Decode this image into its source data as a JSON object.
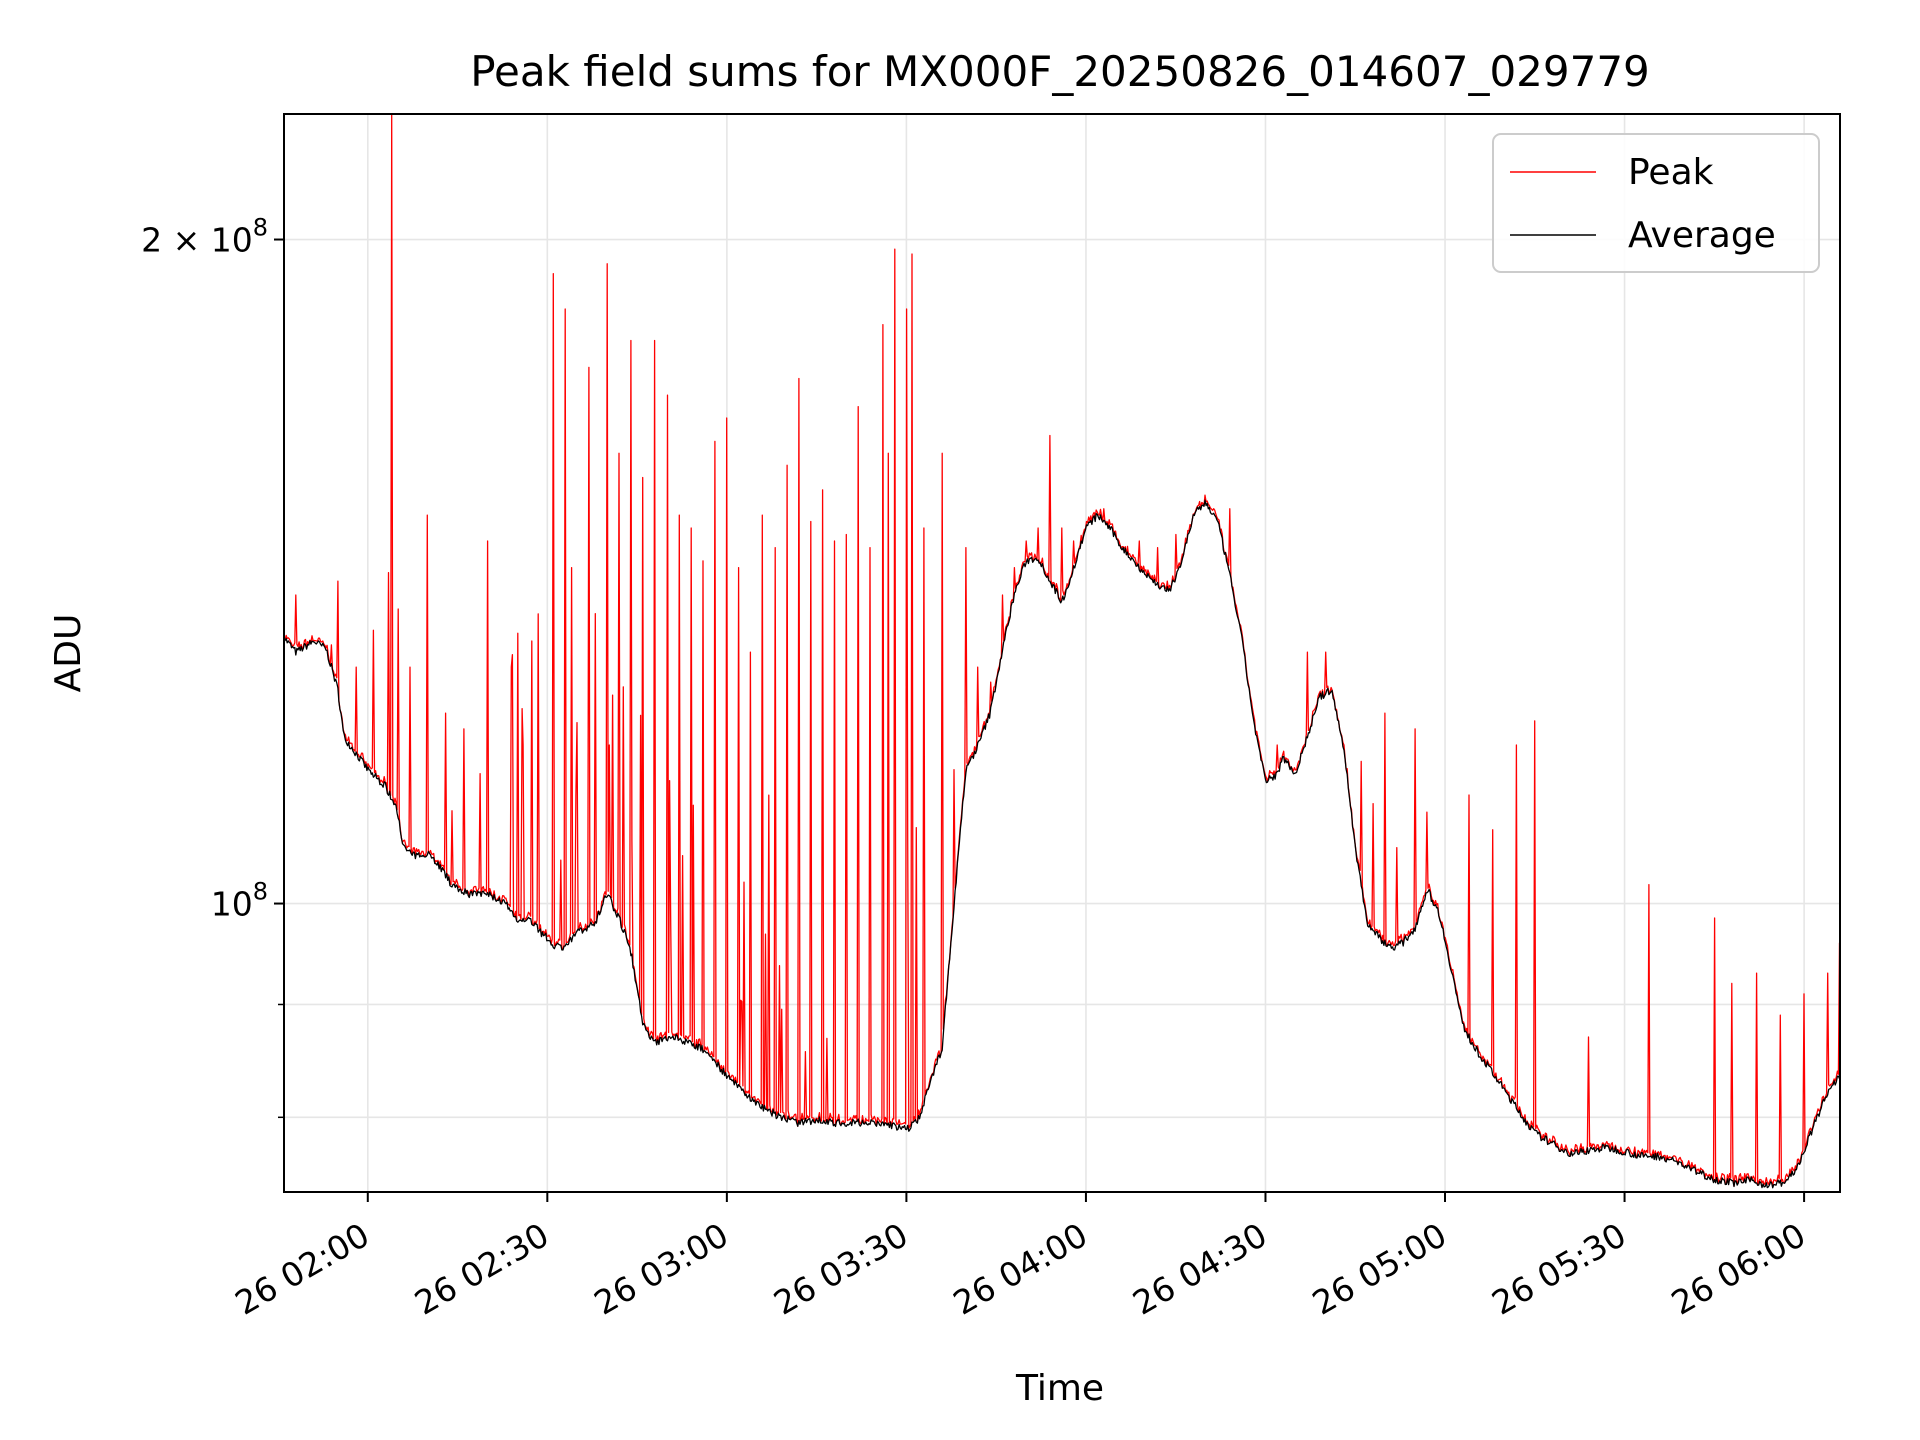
{
  "chart_data": {
    "type": "line",
    "title": "Peak field sums for MX000F_20250826_014607_029779",
    "xlabel": "Time",
    "ylabel": "ADU",
    "y_scale": "log",
    "xlim": [
      "26 01:46",
      "26 06:06"
    ],
    "ylim": [
      74000000,
      228000000
    ],
    "grid": true,
    "legend": {
      "placement": "upper right",
      "entries": [
        {
          "name": "Peak",
          "color": "#ff0000"
        },
        {
          "name": "Average",
          "color": "#000000"
        }
      ]
    },
    "x_ticks": [
      {
        "value": "26 02:00",
        "label": "26 02:00"
      },
      {
        "value": "26 02:30",
        "label": "26 02:30"
      },
      {
        "value": "26 03:00",
        "label": "26 03:00"
      },
      {
        "value": "26 03:30",
        "label": "26 03:30"
      },
      {
        "value": "26 04:00",
        "label": "26 04:00"
      },
      {
        "value": "26 04:30",
        "label": "26 04:30"
      },
      {
        "value": "26 05:00",
        "label": "26 05:00"
      },
      {
        "value": "26 05:30",
        "label": "26 05:30"
      },
      {
        "value": "26 06:00",
        "label": "26 06:00"
      }
    ],
    "y_ticks_major": [
      {
        "value": 100000000,
        "base": "10",
        "exp": "8",
        "coef": ""
      },
      {
        "value": 200000000,
        "base": "10",
        "exp": "8",
        "coef": "2 × "
      }
    ],
    "y_ticks_minor": [
      80000000,
      90000000
    ],
    "series": [
      {
        "name": "Average",
        "color": "#000000",
        "points": [
          [
            "26 01:46",
            132000000
          ],
          [
            "26 01:48",
            130000000
          ],
          [
            "26 01:51",
            131500000
          ],
          [
            "26 01:53",
            130500000
          ],
          [
            "26 01:55",
            125000000
          ],
          [
            "26 01:56",
            119000000
          ],
          [
            "26 01:58",
            117000000
          ],
          [
            "26 02:00",
            115000000
          ],
          [
            "26 02:03",
            113000000
          ],
          [
            "26 02:05",
            110000000
          ],
          [
            "26 02:06",
            106000000
          ],
          [
            "26 02:08",
            105000000
          ],
          [
            "26 02:10",
            105500000
          ],
          [
            "26 02:12",
            104000000
          ],
          [
            "26 02:14",
            102000000
          ],
          [
            "26 02:17",
            101000000
          ],
          [
            "26 02:20",
            101000000
          ],
          [
            "26 02:23",
            100000000
          ],
          [
            "26 02:25",
            98000000
          ],
          [
            "26 02:27",
            98500000
          ],
          [
            "26 02:29",
            97000000
          ],
          [
            "26 02:31",
            95800000
          ],
          [
            "26 02:33",
            95500000
          ],
          [
            "26 02:35",
            97000000
          ],
          [
            "26 02:38",
            98000000
          ],
          [
            "26 02:40",
            101000000
          ],
          [
            "26 02:42",
            98500000
          ],
          [
            "26 02:44",
            95000000
          ],
          [
            "26 02:46",
            88000000
          ],
          [
            "26 02:48",
            86500000
          ],
          [
            "26 02:51",
            87000000
          ],
          [
            "26 02:54",
            86500000
          ],
          [
            "26 02:57",
            85500000
          ],
          [
            "26 03:00",
            83500000
          ],
          [
            "26 03:03",
            82000000
          ],
          [
            "26 03:06",
            80800000
          ],
          [
            "26 03:09",
            80000000
          ],
          [
            "26 03:12",
            79500000
          ],
          [
            "26 03:15",
            79800000
          ],
          [
            "26 03:18",
            79500000
          ],
          [
            "26 03:21",
            79600000
          ],
          [
            "26 03:24",
            79500000
          ],
          [
            "26 03:27",
            79400000
          ],
          [
            "26 03:30",
            79000000
          ],
          [
            "26 03:32",
            79800000
          ],
          [
            "26 03:34",
            83000000
          ],
          [
            "26 03:36",
            86000000
          ],
          [
            "26 03:37",
            93000000
          ],
          [
            "26 03:38",
            100000000
          ],
          [
            "26 03:39",
            108000000
          ],
          [
            "26 03:40",
            115000000
          ],
          [
            "26 03:42",
            118000000
          ],
          [
            "26 03:44",
            122000000
          ],
          [
            "26 03:46",
            130000000
          ],
          [
            "26 03:48",
            138000000
          ],
          [
            "26 03:50",
            143000000
          ],
          [
            "26 03:52",
            143500000
          ],
          [
            "26 03:54",
            140000000
          ],
          [
            "26 03:56",
            137000000
          ],
          [
            "26 03:58",
            142000000
          ],
          [
            "26 04:00",
            148000000
          ],
          [
            "26 04:02",
            150000000
          ],
          [
            "26 04:04",
            148000000
          ],
          [
            "26 04:06",
            145000000
          ],
          [
            "26 04:08",
            143000000
          ],
          [
            "26 04:10",
            141000000
          ],
          [
            "26 04:12",
            139500000
          ],
          [
            "26 04:14",
            138500000
          ],
          [
            "26 04:16",
            143000000
          ],
          [
            "26 04:18",
            150000000
          ],
          [
            "26 04:20",
            152000000
          ],
          [
            "26 04:22",
            149000000
          ],
          [
            "26 04:24",
            141000000
          ],
          [
            "26 04:26",
            132000000
          ],
          [
            "26 04:28",
            121000000
          ],
          [
            "26 04:30",
            113500000
          ],
          [
            "26 04:32",
            114500000
          ],
          [
            "26 04:33",
            116500000
          ],
          [
            "26 04:35",
            114500000
          ],
          [
            "26 04:37",
            119000000
          ],
          [
            "26 04:39",
            124000000
          ],
          [
            "26 04:41",
            125000000
          ],
          [
            "26 04:43",
            118000000
          ],
          [
            "26 04:45",
            106000000
          ],
          [
            "26 04:47",
            98000000
          ],
          [
            "26 04:49",
            96500000
          ],
          [
            "26 04:51",
            95500000
          ],
          [
            "26 04:53",
            96000000
          ],
          [
            "26 04:55",
            97500000
          ],
          [
            "26 04:57",
            101500000
          ],
          [
            "26 04:59",
            99000000
          ],
          [
            "26 05:01",
            93500000
          ],
          [
            "26 05:03",
            88000000
          ],
          [
            "26 05:05",
            86000000
          ],
          [
            "26 05:07",
            84500000
          ],
          [
            "26 05:09",
            83000000
          ],
          [
            "26 05:11",
            81500000
          ],
          [
            "26 05:13",
            80000000
          ],
          [
            "26 05:15",
            78700000
          ],
          [
            "26 05:18",
            77800000
          ],
          [
            "26 05:21",
            77000000
          ],
          [
            "26 05:24",
            77300000
          ],
          [
            "26 05:27",
            77500000
          ],
          [
            "26 05:30",
            77200000
          ],
          [
            "26 05:33",
            76800000
          ],
          [
            "26 05:36",
            76800000
          ],
          [
            "26 05:39",
            76300000
          ],
          [
            "26 05:42",
            75600000
          ],
          [
            "26 05:45",
            75000000
          ],
          [
            "26 05:48",
            74700000
          ],
          [
            "26 05:51",
            74900000
          ],
          [
            "26 05:54",
            74500000
          ],
          [
            "26 05:57",
            74800000
          ],
          [
            "26 05:59",
            76000000
          ],
          [
            "26 06:01",
            78500000
          ],
          [
            "26 06:03",
            81000000
          ],
          [
            "26 06:05",
            83000000
          ],
          [
            "26 06:06",
            83300000
          ]
        ]
      },
      {
        "name": "Peak",
        "color": "#ff0000",
        "spikes": [
          [
            "26 01:48",
            138000000
          ],
          [
            "26 01:54",
            131000000
          ],
          [
            "26 01:55",
            140000000
          ],
          [
            "26 01:58",
            128000000
          ],
          [
            "26 02:01",
            133000000
          ],
          [
            "26 02:04",
            228000000
          ],
          [
            "26 02:05",
            136000000
          ],
          [
            "26 02:07",
            128000000
          ],
          [
            "26 02:10",
            150000000
          ],
          [
            "26 02:13",
            122000000
          ],
          [
            "26 02:16",
            120000000
          ],
          [
            "26 02:20",
            146000000
          ],
          [
            "26 02:24",
            128000000
          ],
          [
            "26 02:26",
            118000000
          ],
          [
            "26 02:31",
            193000000
          ],
          [
            "26 02:33",
            186000000
          ],
          [
            "26 02:34",
            142000000
          ],
          [
            "26 02:37",
            175000000
          ],
          [
            "26 02:40",
            195000000
          ],
          [
            "26 02:42",
            160000000
          ],
          [
            "26 02:44",
            180000000
          ],
          [
            "26 02:46",
            156000000
          ],
          [
            "26 02:48",
            180000000
          ],
          [
            "26 02:50",
            170000000
          ],
          [
            "26 02:52",
            150000000
          ],
          [
            "26 02:54",
            148000000
          ],
          [
            "26 02:56",
            143000000
          ],
          [
            "26 02:58",
            162000000
          ],
          [
            "26 03:00",
            166000000
          ],
          [
            "26 03:02",
            142000000
          ],
          [
            "26 03:04",
            130000000
          ],
          [
            "26 03:06",
            150000000
          ],
          [
            "26 03:08",
            145000000
          ],
          [
            "26 03:10",
            158000000
          ],
          [
            "26 03:12",
            173000000
          ],
          [
            "26 03:14",
            149000000
          ],
          [
            "26 03:16",
            154000000
          ],
          [
            "26 03:18",
            146000000
          ],
          [
            "26 03:20",
            147000000
          ],
          [
            "26 03:22",
            168000000
          ],
          [
            "26 03:24",
            145000000
          ],
          [
            "26 03:26",
            183000000
          ],
          [
            "26 03:27",
            160000000
          ],
          [
            "26 03:28",
            198000000
          ],
          [
            "26 03:30",
            186000000
          ],
          [
            "26 03:31",
            197000000
          ],
          [
            "26 03:33",
            148000000
          ],
          [
            "26 03:36",
            160000000
          ],
          [
            "26 03:38",
            115000000
          ],
          [
            "26 03:40",
            145000000
          ],
          [
            "26 03:42",
            128000000
          ],
          [
            "26 03:44",
            126000000
          ],
          [
            "26 03:46",
            138000000
          ],
          [
            "26 03:48",
            142000000
          ],
          [
            "26 03:50",
            146000000
          ],
          [
            "26 03:52",
            148000000
          ],
          [
            "26 03:54",
            163000000
          ],
          [
            "26 03:56",
            148000000
          ],
          [
            "26 03:58",
            146000000
          ],
          [
            "26 04:03",
            151000000
          ],
          [
            "26 04:09",
            146000000
          ],
          [
            "26 04:12",
            145000000
          ],
          [
            "26 04:15",
            147000000
          ],
          [
            "26 04:24",
            151000000
          ],
          [
            "26 04:32",
            118000000
          ],
          [
            "26 04:37",
            130000000
          ],
          [
            "26 04:40",
            130000000
          ],
          [
            "26 04:46",
            116000000
          ],
          [
            "26 04:48",
            111000000
          ],
          [
            "26 04:50",
            122000000
          ],
          [
            "26 04:52",
            106000000
          ],
          [
            "26 04:55",
            120000000
          ],
          [
            "26 04:57",
            110000000
          ],
          [
            "26 05:04",
            112000000
          ],
          [
            "26 05:08",
            108000000
          ],
          [
            "26 05:12",
            118000000
          ],
          [
            "26 05:15",
            121000000
          ],
          [
            "26 05:24",
            87000000
          ],
          [
            "26 05:34",
            102000000
          ],
          [
            "26 05:45",
            98500000
          ],
          [
            "26 05:48",
            92000000
          ],
          [
            "26 05:52",
            93000000
          ],
          [
            "26 05:56",
            89000000
          ],
          [
            "26 06:00",
            91000000
          ],
          [
            "26 06:04",
            93000000
          ],
          [
            "26 06:06",
            96000000
          ]
        ]
      }
    ]
  }
}
